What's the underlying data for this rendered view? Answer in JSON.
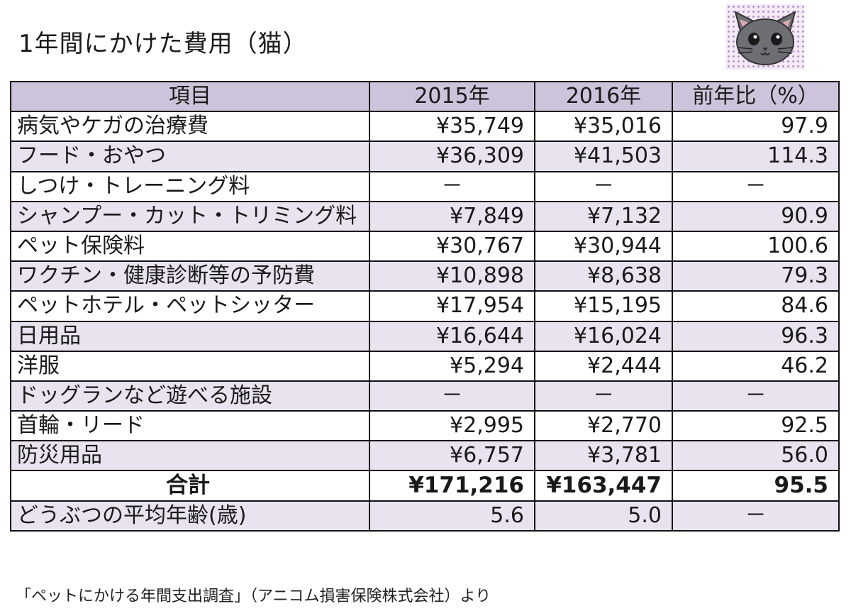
{
  "title": "1年間にかけた費用（猫）",
  "header": {
    "item": "項目",
    "y2015": "2015年",
    "y2016": "2016年",
    "ratio": "前年比（%）"
  },
  "rows": [
    {
      "item": "病気やケガの治療費",
      "y2015": "¥35,749",
      "y2016": "¥35,016",
      "ratio": "97.9"
    },
    {
      "item": "フード・おやつ",
      "y2015": "¥36,309",
      "y2016": "¥41,503",
      "ratio": "114.3"
    },
    {
      "item": "しつけ・トレーニング料",
      "y2015": "－",
      "y2016": "－",
      "ratio": "－"
    },
    {
      "item": "シャンプー・カット・トリミング料",
      "y2015": "¥7,849",
      "y2016": "¥7,132",
      "ratio": "90.9"
    },
    {
      "item": "ペット保険料",
      "y2015": "¥30,767",
      "y2016": "¥30,944",
      "ratio": "100.6"
    },
    {
      "item": "ワクチン・健康診断等の予防費",
      "y2015": "¥10,898",
      "y2016": "¥8,638",
      "ratio": "79.3"
    },
    {
      "item": "ペットホテル・ペットシッター",
      "y2015": "¥17,954",
      "y2016": "¥15,195",
      "ratio": "84.6"
    },
    {
      "item": "日用品",
      "y2015": "¥16,644",
      "y2016": "¥16,024",
      "ratio": "96.3"
    },
    {
      "item": "洋服",
      "y2015": "¥5,294",
      "y2016": "¥2,444",
      "ratio": "46.2"
    },
    {
      "item": "ドッグランなど遊べる施設",
      "y2015": "－",
      "y2016": "－",
      "ratio": "－"
    },
    {
      "item": "首輪・リード",
      "y2015": "¥2,995",
      "y2016": "¥2,770",
      "ratio": "92.5"
    },
    {
      "item": "防災用品",
      "y2015": "¥6,757",
      "y2016": "¥3,781",
      "ratio": "56.0"
    }
  ],
  "total": {
    "item": "合計",
    "y2015": "¥171,216",
    "y2016": "¥163,447",
    "ratio": "95.5"
  },
  "age": {
    "item": "どうぶつの平均年齢(歳)",
    "y2015": "5.6",
    "y2016": "5.0",
    "ratio": "－"
  },
  "source": "「ペットにかける年間支出調査」（アニコム損害保険株式会社）より",
  "icon": "cat-face-icon",
  "colors": {
    "header_bg": "#cdc4dc",
    "shade_bg": "#e8e3ef",
    "cat_gray": "#6e6e74"
  }
}
